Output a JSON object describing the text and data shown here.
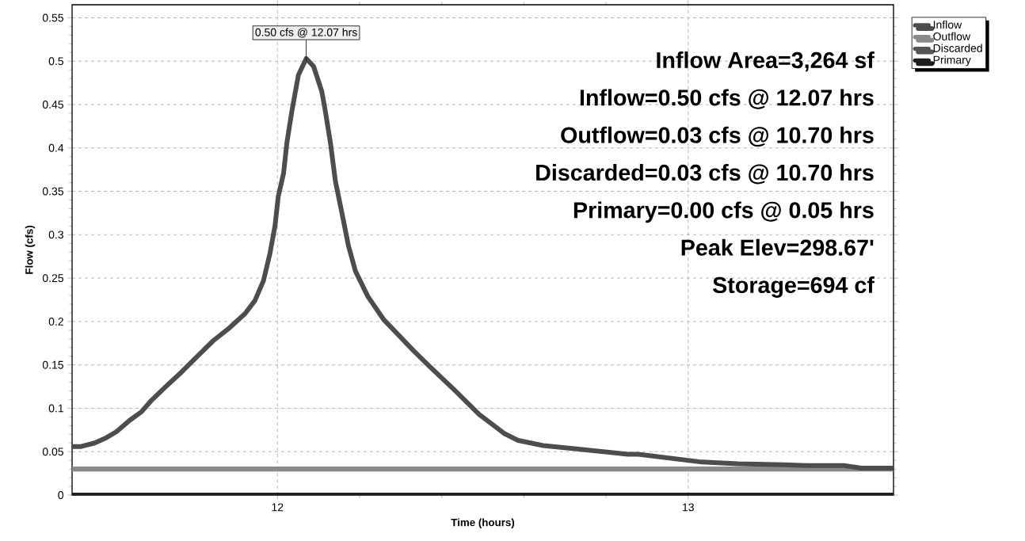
{
  "chart_data": {
    "type": "line",
    "xlabel": "Time (hours)",
    "ylabel": "Flow (cfs)",
    "xlim": [
      11.5,
      13.5
    ],
    "xticks": [
      12,
      13
    ],
    "ylim": [
      0,
      0.565
    ],
    "yticks": [
      0,
      0.05,
      0.1,
      0.15,
      0.2,
      0.25,
      0.3,
      0.35,
      0.4,
      0.45,
      0.5,
      0.55
    ],
    "grid": true,
    "legend": "top right",
    "line_style": "solid",
    "marker": "none",
    "annotations": [
      {
        "text": "0.50 cfs @ 12.07 hrs",
        "x": 12.07,
        "y": 0.5
      },
      "Inflow Area=3,264 sf",
      "Inflow=0.50 cfs @ 12.07 hrs",
      "Outflow=0.03 cfs @ 10.70 hrs",
      "Discarded=0.03 cfs @ 10.70 hrs",
      "Primary=0.00 cfs @ 0.05 hrs",
      "Peak Elev=298.67'",
      "Storage=694 cf"
    ],
    "series": [
      {
        "name": "Inflow",
        "color": "#4d4d4d",
        "x": [
          11.5,
          11.522,
          11.555,
          11.583,
          11.608,
          11.64,
          11.669,
          11.693,
          11.726,
          11.767,
          11.803,
          11.844,
          11.884,
          11.921,
          11.945,
          11.966,
          11.982,
          11.994,
          12.002,
          12.015,
          12.023,
          12.035,
          12.051,
          12.07,
          12.088,
          12.108,
          12.116,
          12.129,
          12.141,
          12.157,
          12.173,
          12.19,
          12.22,
          12.259,
          12.332,
          12.371,
          12.431,
          12.491,
          12.552,
          12.586,
          12.647,
          12.733,
          12.853,
          12.879,
          13.034,
          13.121,
          13.233,
          13.293,
          13.379,
          13.422,
          13.5
        ],
        "values": [
          0.056,
          0.056,
          0.06,
          0.066,
          0.073,
          0.086,
          0.096,
          0.109,
          0.124,
          0.142,
          0.159,
          0.178,
          0.193,
          0.209,
          0.224,
          0.247,
          0.279,
          0.31,
          0.344,
          0.371,
          0.406,
          0.442,
          0.484,
          0.503,
          0.494,
          0.465,
          0.444,
          0.406,
          0.362,
          0.325,
          0.287,
          0.258,
          0.229,
          0.202,
          0.166,
          0.148,
          0.121,
          0.093,
          0.071,
          0.063,
          0.057,
          0.053,
          0.047,
          0.047,
          0.038,
          0.036,
          0.035,
          0.034,
          0.034,
          0.031,
          0.031
        ]
      },
      {
        "name": "Outflow",
        "color": "#8a8a8a",
        "x": [
          11.5,
          13.5
        ],
        "values": [
          0.03,
          0.03
        ]
      },
      {
        "name": "Discarded",
        "color": "#555555",
        "x": [
          11.5,
          13.5
        ],
        "values": [
          0.03,
          0.03
        ]
      },
      {
        "name": "Primary",
        "color": "#1e1e1e",
        "x": [
          11.5,
          13.5
        ],
        "values": [
          0,
          0
        ]
      }
    ]
  }
}
